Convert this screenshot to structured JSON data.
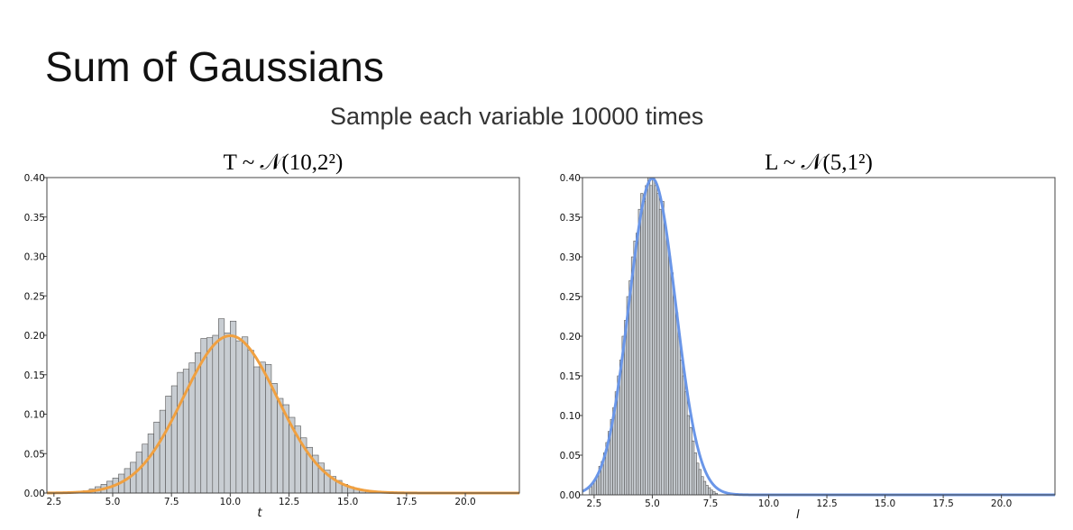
{
  "slide": {
    "title": "Sum of Gaussians",
    "subtitle": "Sample each variable 10000 times"
  },
  "chart_data": [
    {
      "type": "bar",
      "title": "T ~ 𝒩(10,2²)",
      "xlabel": "t",
      "ylabel": "",
      "xlim": [
        2.2,
        22.3
      ],
      "ylim": [
        0,
        0.4
      ],
      "xticks": [
        "2.5",
        "5.0",
        "7.5",
        "10.0",
        "12.5",
        "15.0",
        "17.5",
        "20.0"
      ],
      "yticks": [
        "0.00",
        "0.05",
        "0.10",
        "0.15",
        "0.20",
        "0.25",
        "0.30",
        "0.35",
        "0.40"
      ],
      "grid": false,
      "colors": {
        "bars": "#c8cdd2",
        "bar_edge": "#555555",
        "curve": "#f0a040"
      },
      "bin_width": 0.25,
      "histogram": {
        "bin_start": [
          3.75,
          4.0,
          4.25,
          4.5,
          4.75,
          5.0,
          5.25,
          5.5,
          5.75,
          6.0,
          6.25,
          6.5,
          6.75,
          7.0,
          7.25,
          7.5,
          7.75,
          8.0,
          8.25,
          8.5,
          8.75,
          9.0,
          9.25,
          9.5,
          9.75,
          10.0,
          10.25,
          10.5,
          10.75,
          11.0,
          11.25,
          11.5,
          11.75,
          12.0,
          12.25,
          12.5,
          12.75,
          13.0,
          13.25,
          13.5,
          13.75,
          14.0,
          14.25,
          14.5,
          14.75,
          15.0,
          15.25,
          15.5,
          15.75,
          16.0
        ],
        "density": [
          0.003,
          0.005,
          0.008,
          0.011,
          0.015,
          0.019,
          0.024,
          0.031,
          0.039,
          0.052,
          0.062,
          0.075,
          0.09,
          0.105,
          0.123,
          0.136,
          0.153,
          0.157,
          0.165,
          0.178,
          0.196,
          0.197,
          0.2,
          0.221,
          0.203,
          0.218,
          0.193,
          0.198,
          0.181,
          0.16,
          0.166,
          0.163,
          0.139,
          0.12,
          0.112,
          0.096,
          0.085,
          0.07,
          0.058,
          0.048,
          0.038,
          0.029,
          0.021,
          0.016,
          0.011,
          0.008,
          0.006,
          0.004,
          0.002,
          0.001
        ]
      },
      "curve": {
        "mean": 10,
        "std": 2
      }
    },
    {
      "type": "bar",
      "title": "L ~ 𝒩(5,1²)",
      "xlabel": "l",
      "ylabel": "",
      "xlim": [
        2.0,
        22.3
      ],
      "ylim": [
        0,
        0.4
      ],
      "xticks": [
        "2.5",
        "5.0",
        "7.5",
        "10.0",
        "12.5",
        "15.0",
        "17.5",
        "20.0"
      ],
      "yticks": [
        "0.00",
        "0.05",
        "0.10",
        "0.15",
        "0.20",
        "0.25",
        "0.30",
        "0.35",
        "0.40"
      ],
      "grid": false,
      "colors": {
        "bars": "#c8cdd2",
        "bar_edge": "#555555",
        "curve": "#6a96e8"
      },
      "bin_width": 0.1,
      "histogram": {
        "bin_start": [
          2.3,
          2.4,
          2.5,
          2.6,
          2.7,
          2.8,
          2.9,
          3.0,
          3.1,
          3.2,
          3.3,
          3.4,
          3.5,
          3.6,
          3.7,
          3.8,
          3.9,
          4.0,
          4.1,
          4.2,
          4.3,
          4.4,
          4.5,
          4.6,
          4.7,
          4.8,
          4.9,
          5.0,
          5.1,
          5.2,
          5.3,
          5.4,
          5.5,
          5.6,
          5.7,
          5.8,
          5.9,
          6.0,
          6.1,
          6.2,
          6.3,
          6.4,
          6.5,
          6.6,
          6.7,
          6.8,
          6.9,
          7.0,
          7.1,
          7.2,
          7.3,
          7.4,
          7.5,
          7.6,
          7.7
        ],
        "density": [
          0.01,
          0.015,
          0.018,
          0.025,
          0.036,
          0.042,
          0.053,
          0.066,
          0.08,
          0.095,
          0.11,
          0.13,
          0.15,
          0.17,
          0.2,
          0.22,
          0.25,
          0.27,
          0.3,
          0.32,
          0.33,
          0.36,
          0.38,
          0.37,
          0.39,
          0.4,
          0.39,
          0.4,
          0.39,
          0.38,
          0.36,
          0.37,
          0.34,
          0.32,
          0.3,
          0.28,
          0.25,
          0.23,
          0.2,
          0.17,
          0.15,
          0.13,
          0.1,
          0.085,
          0.068,
          0.053,
          0.04,
          0.032,
          0.023,
          0.017,
          0.012,
          0.009,
          0.006,
          0.004,
          0.002
        ]
      },
      "curve": {
        "mean": 5,
        "std": 1
      }
    }
  ]
}
